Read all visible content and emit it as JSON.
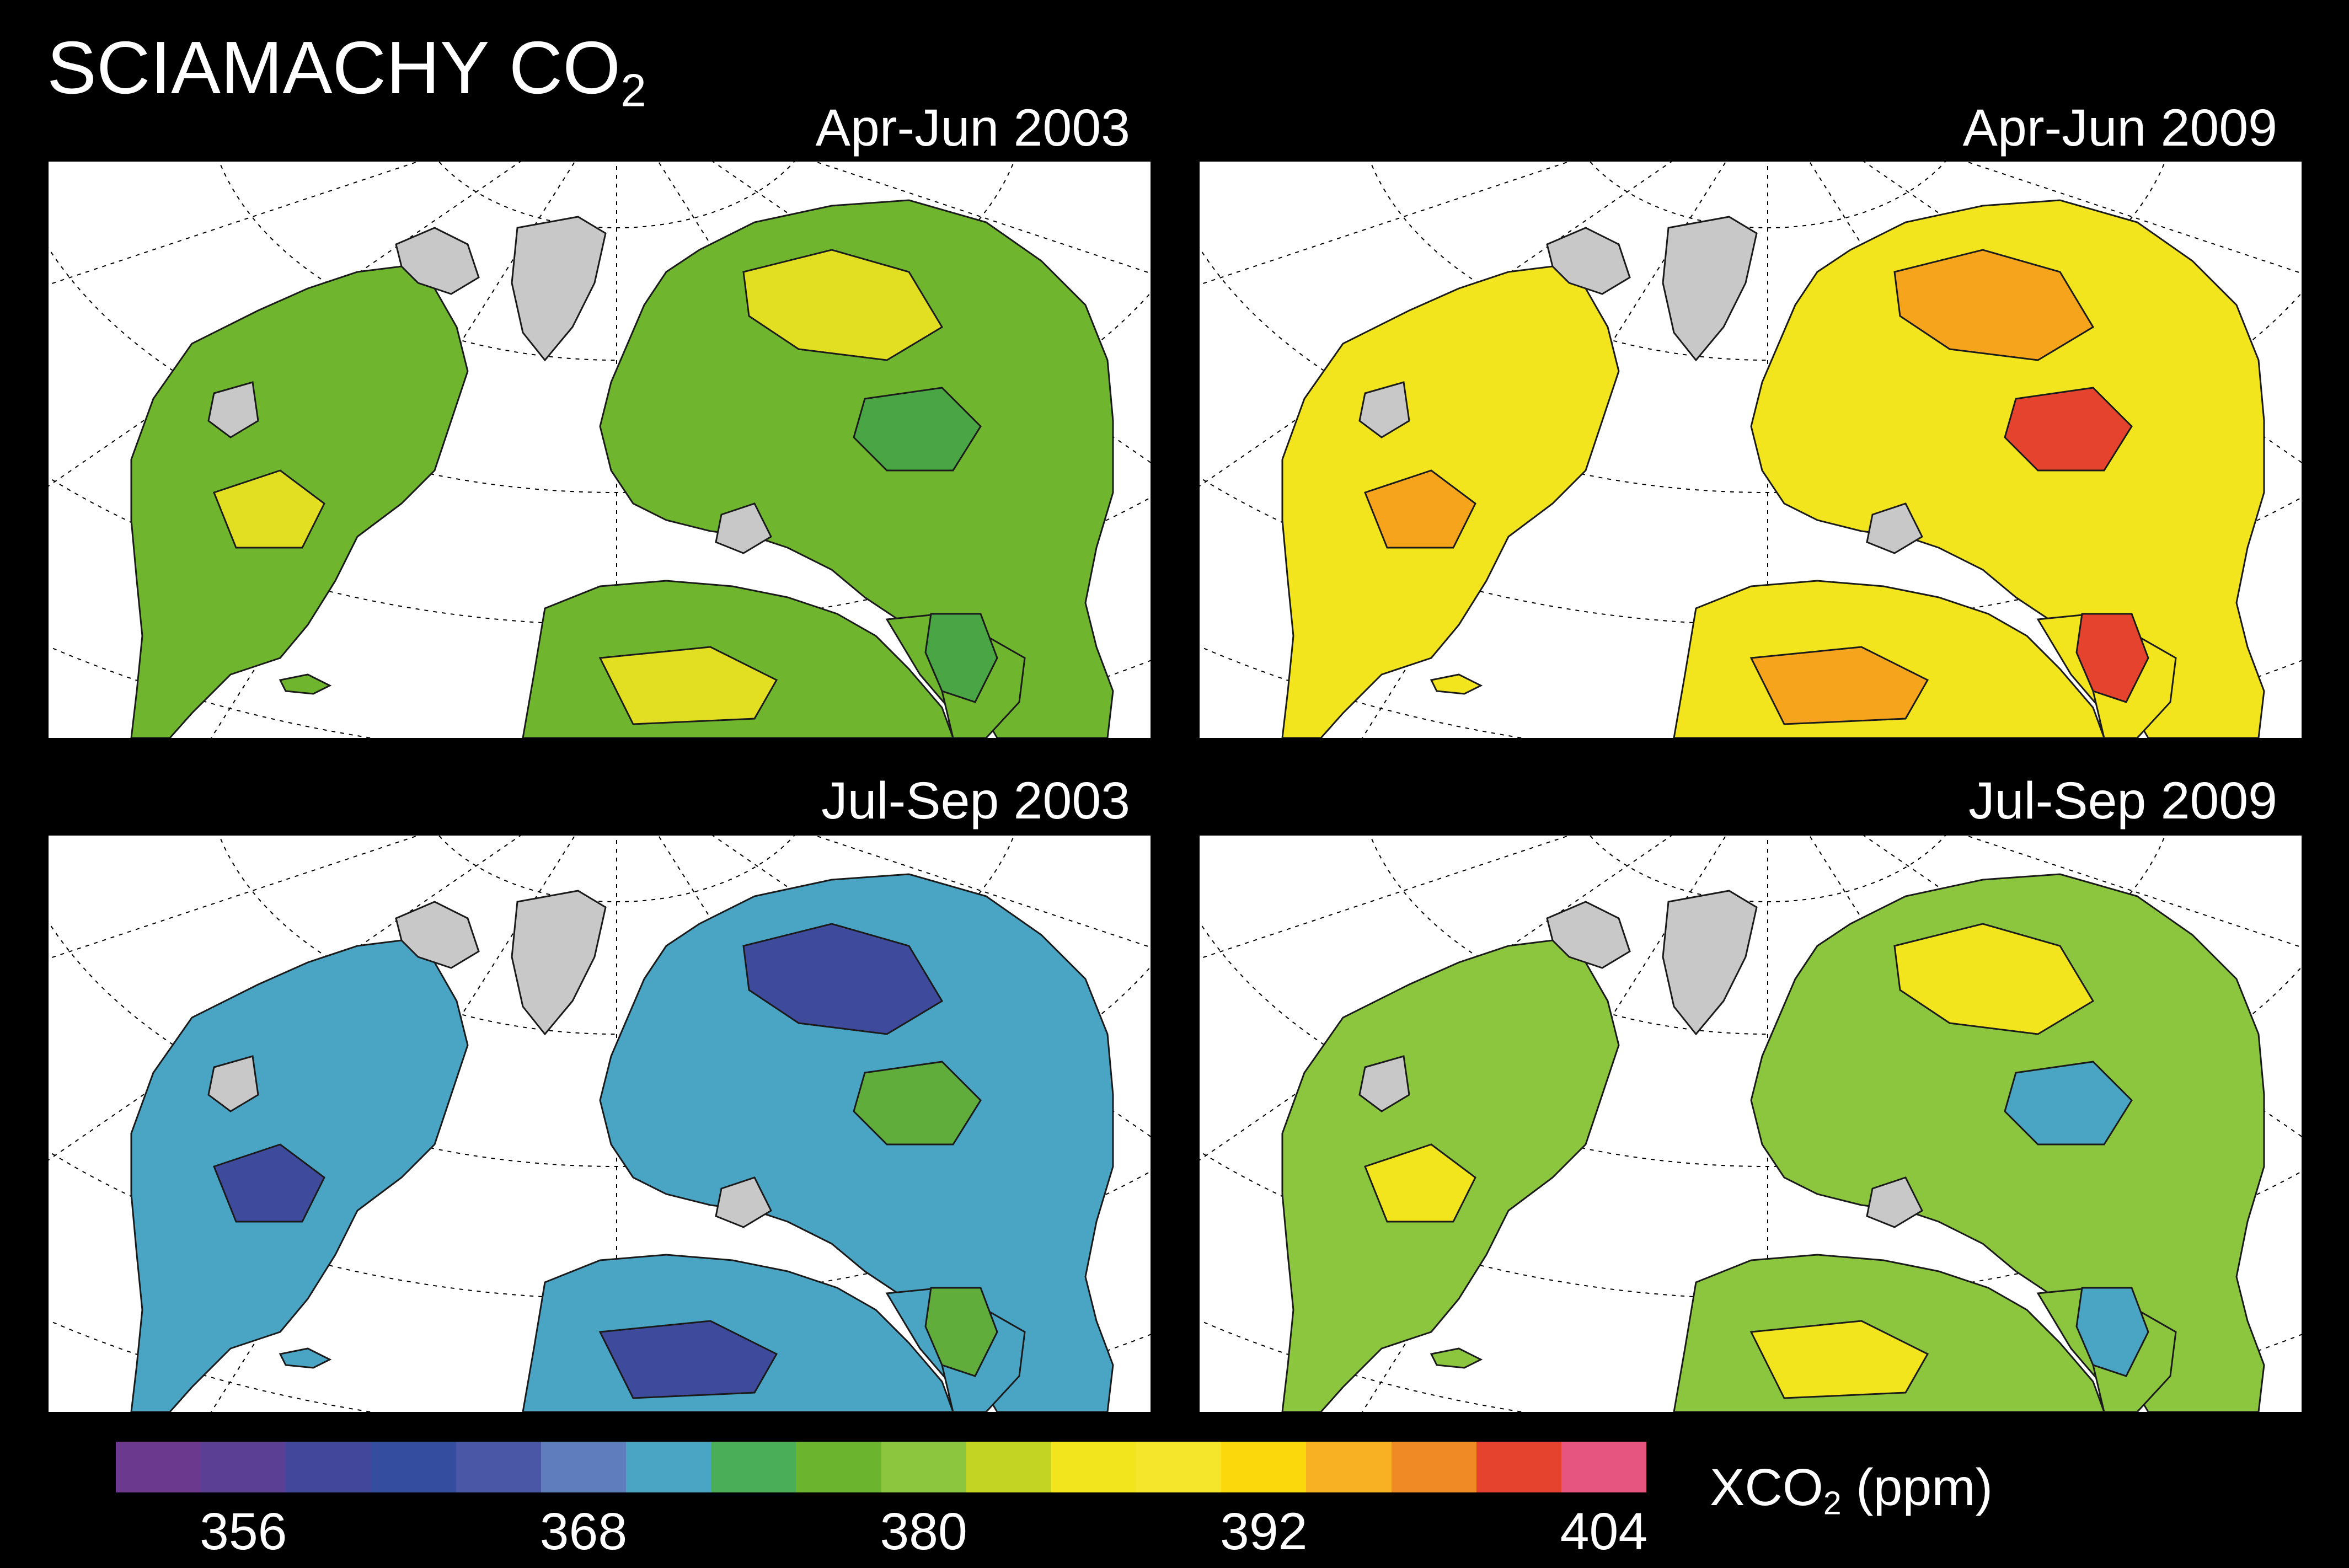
{
  "figure": {
    "title_main": "SCIAMACHY CO",
    "title_sub": "2"
  },
  "panels": [
    {
      "title": "Apr-Jun 2003",
      "land_color": "#6fb52e",
      "accent_color": "#e2df22",
      "blob_color": "#4aa645"
    },
    {
      "title": "Apr-Jun 2009",
      "land_color": "#f2e51d",
      "accent_color": "#f6a41b",
      "blob_color": "#e6432f"
    },
    {
      "title": "Jul-Sep 2003",
      "land_color": "#4aa4c4",
      "accent_color": "#3e4b9c",
      "blob_color": "#60ad3b"
    },
    {
      "title": "Jul-Sep 2009",
      "land_color": "#8cc63f",
      "accent_color": "#f2e51d",
      "blob_color": "#4aa4c4"
    }
  ],
  "colorbar": {
    "colors": [
      "#6b3a8e",
      "#5a3f95",
      "#43479c",
      "#344d9e",
      "#4a56a6",
      "#5f7dbd",
      "#4aa4c4",
      "#4aad58",
      "#6ab42e",
      "#8cc63f",
      "#c4d423",
      "#f2e51d",
      "#f6e62b",
      "#fbd80c",
      "#f8b122",
      "#ef8a24",
      "#e6432f",
      "#e6557f"
    ],
    "ticks": [
      {
        "value": 356,
        "label": "356",
        "index": 2
      },
      {
        "value": 368,
        "label": "368",
        "index": 6
      },
      {
        "value": 380,
        "label": "380",
        "index": 10
      },
      {
        "value": 392,
        "label": "392",
        "index": 14
      },
      {
        "value": 404,
        "label": "404",
        "index": 18
      }
    ],
    "unit_main": "XCO",
    "unit_sub": "2",
    "unit_tail": " (ppm)",
    "missing_color": "#c8c8c8"
  }
}
